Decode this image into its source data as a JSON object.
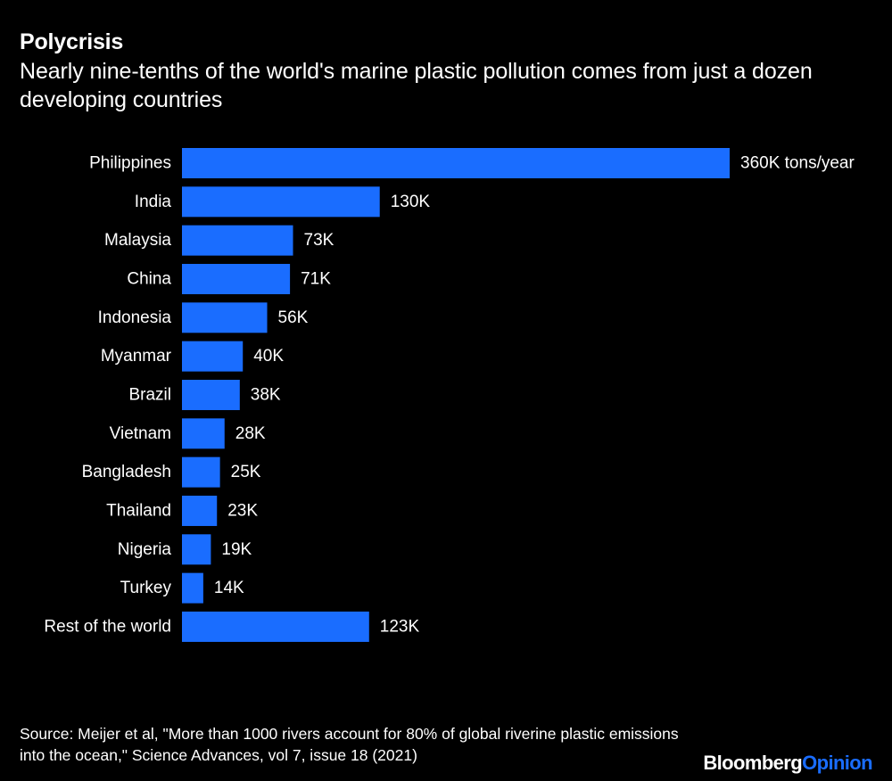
{
  "title": "Polycrisis",
  "subtitle": "Nearly nine-tenths of the world's marine plastic pollution comes from just a dozen developing countries",
  "source": "Source: Meijer et al, \"More than 1000 rivers account for 80% of global riverine plastic emissions into the ocean,\" Science Advances, vol 7, issue 18 (2021)",
  "brand": {
    "part1": "Bloomberg",
    "part2": "Opinion"
  },
  "colors": {
    "background": "#000000",
    "bar": "#1a6dff",
    "text": "#ffffff"
  },
  "chart_data": {
    "type": "bar",
    "orientation": "horizontal",
    "title": "",
    "xlabel": "",
    "ylabel": "",
    "grid": false,
    "legend": "none",
    "xlim": [
      0,
      360
    ],
    "unit": "thousand tons/year",
    "categories": [
      "Philippines",
      "India",
      "Malaysia",
      "China",
      "Indonesia",
      "Myanmar",
      "Brazil",
      "Vietnam",
      "Bangladesh",
      "Thailand",
      "Nigeria",
      "Turkey",
      "Rest of the world"
    ],
    "values": [
      360,
      130,
      73,
      71,
      56,
      40,
      38,
      28,
      25,
      23,
      19,
      14,
      123
    ],
    "value_labels": [
      "360K tons/year",
      "130K",
      "73K",
      "71K",
      "56K",
      "40K",
      "38K",
      "28K",
      "25K",
      "23K",
      "19K",
      "14K",
      "123K"
    ]
  }
}
